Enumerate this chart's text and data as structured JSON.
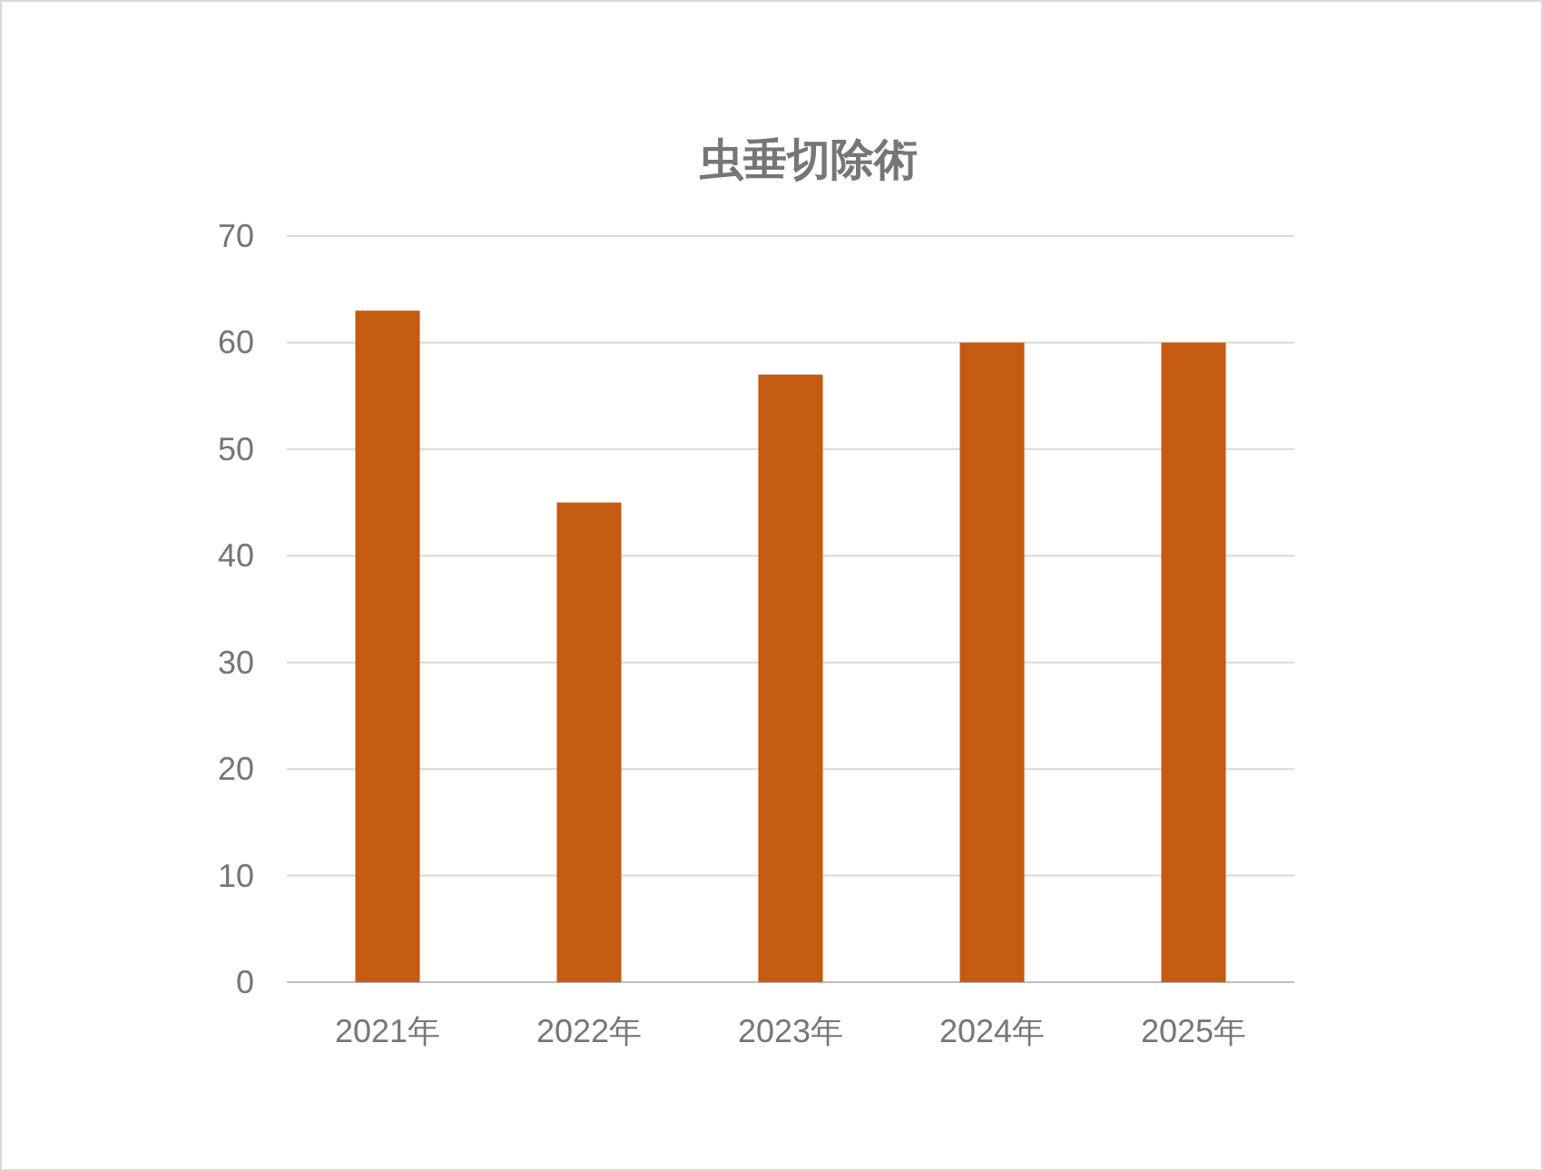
{
  "chart_data": {
    "type": "bar",
    "title": "虫垂切除術",
    "categories": [
      "2021年",
      "2022年",
      "2023年",
      "2024年",
      "2025年"
    ],
    "values": [
      63,
      45,
      57,
      60,
      60
    ],
    "color": "#c55a11",
    "ylim": [
      0,
      70
    ],
    "yticks": [
      0,
      10,
      20,
      30,
      40,
      50,
      60,
      70
    ],
    "grid": "y"
  }
}
